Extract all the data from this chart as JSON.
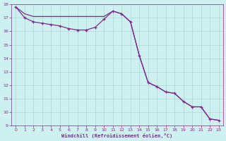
{
  "xlabel": "Windchill (Refroidissement éolien,°C)",
  "line1_x": [
    0,
    1,
    2,
    3,
    4,
    5,
    6,
    7,
    8,
    9,
    10,
    11,
    12,
    13,
    14,
    15,
    16,
    17,
    18,
    19,
    20,
    21,
    22,
    23
  ],
  "line1_y": [
    17.8,
    17.3,
    17.1,
    17.1,
    17.1,
    17.1,
    17.1,
    17.1,
    17.1,
    17.1,
    17.1,
    17.5,
    17.3,
    16.7,
    14.2,
    12.2,
    11.9,
    11.5,
    11.4,
    10.8,
    10.4,
    10.4,
    9.5,
    9.4
  ],
  "line2_x": [
    0,
    1,
    2,
    3,
    4,
    5,
    6,
    7,
    8,
    9,
    10,
    11,
    12,
    13,
    14,
    15,
    16,
    17,
    18,
    19,
    20,
    21,
    22,
    23
  ],
  "line2_y": [
    17.8,
    17.0,
    16.7,
    16.6,
    16.5,
    16.4,
    16.2,
    16.1,
    16.1,
    16.3,
    16.9,
    17.5,
    17.3,
    16.7,
    14.2,
    12.2,
    11.9,
    11.5,
    11.4,
    10.8,
    10.4,
    10.4,
    9.5,
    9.4
  ],
  "line_color": "#7B2D8B",
  "bg_color": "#cff0f0",
  "grid_color": "#aad8d8",
  "ylim": [
    9,
    18
  ],
  "xlim": [
    -0.5,
    23.5
  ],
  "yticks": [
    9,
    10,
    11,
    12,
    13,
    14,
    15,
    16,
    17,
    18
  ],
  "xticks": [
    0,
    1,
    2,
    3,
    4,
    5,
    6,
    7,
    8,
    9,
    10,
    11,
    12,
    13,
    14,
    15,
    16,
    17,
    18,
    19,
    20,
    21,
    22,
    23
  ]
}
